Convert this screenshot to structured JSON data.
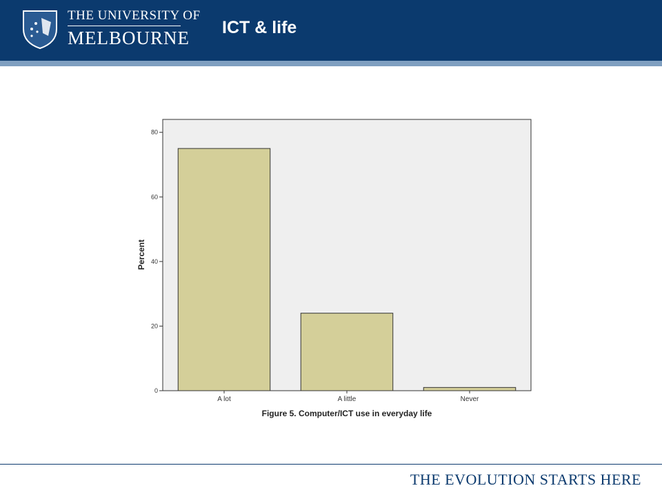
{
  "header": {
    "university_line1": "THE UNIVERSITY OF",
    "university_line2": "MELBOURNE",
    "slide_title": "ICT & life"
  },
  "footer": {
    "tagline": "THE EVOLUTION STARTS HERE"
  },
  "colors": {
    "header_bg": "#0b3a6e",
    "bar_fill": "#d4cf99",
    "plot_bg": "#efefef"
  },
  "chart_data": {
    "type": "bar",
    "categories": [
      "A lot",
      "A little",
      "Never"
    ],
    "values": [
      75,
      24,
      1
    ],
    "title": "Figure 5. Computer/ICT use in everyday life",
    "xlabel": "",
    "ylabel": "Percent",
    "ylim": [
      0,
      84
    ],
    "yticks": [
      0,
      20,
      40,
      60,
      80
    ],
    "grid": false
  }
}
